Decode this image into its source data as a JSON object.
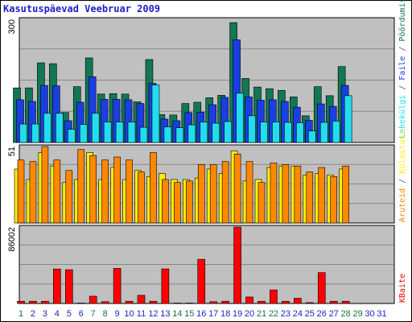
{
  "title": "Kasutuspäevad Veebruar 2009",
  "colors": {
    "title": "#1e1ec8",
    "panel_bg": "#c0c0c0",
    "grid": "#888888",
    "weekday": "#1e1ec8",
    "weekend": "#117744",
    "visits": "#117755",
    "pages": "#1a3fe0",
    "files": "#22ddf0",
    "hits": "#ffee00",
    "hosts": "#ff8800",
    "kbytes": "#ff0000",
    "separator": "#555555"
  },
  "chart_data": [
    {
      "type": "bar",
      "panel": "top",
      "scale_label": "300",
      "ylim": [
        0,
        300
      ],
      "legend": [
        "Pöördumisi",
        "Faile",
        "Lehekülgi"
      ],
      "separator": " / ",
      "categories": [
        1,
        2,
        3,
        4,
        5,
        6,
        7,
        8,
        9,
        10,
        11,
        12,
        13,
        14,
        15,
        16,
        17,
        18,
        19,
        20,
        21,
        22,
        23,
        24,
        25,
        26,
        27,
        28
      ],
      "series": [
        {
          "name": "Pöördumisi",
          "color_key": "visits",
          "values": [
            133,
            133,
            194,
            192,
            73,
            136,
            206,
            118,
            119,
            118,
            99,
            202,
            68,
            67,
            95,
            98,
            109,
            115,
            292,
            156,
            135,
            131,
            127,
            111,
            65,
            136,
            114,
            185
          ]
        },
        {
          "name": "Faile",
          "color_key": "pages",
          "values": [
            104,
            100,
            139,
            138,
            53,
            98,
            160,
            105,
            105,
            104,
            95,
            144,
            57,
            53,
            73,
            74,
            92,
            110,
            250,
            111,
            103,
            104,
            100,
            86,
            54,
            94,
            88,
            139
          ]
        },
        {
          "name": "Lehekülgi",
          "color_key": "files",
          "values": [
            45,
            45,
            71,
            71,
            32,
            44,
            71,
            50,
            50,
            50,
            37,
            140,
            38,
            36,
            43,
            50,
            47,
            51,
            120,
            65,
            50,
            50,
            49,
            48,
            28,
            49,
            52,
            114
          ]
        }
      ]
    },
    {
      "type": "bar",
      "panel": "middle",
      "scale_label": "51",
      "ylim": [
        0,
        51
      ],
      "legend": [
        "Külastusi",
        "Aruteid"
      ],
      "categories": [
        1,
        2,
        3,
        4,
        5,
        6,
        7,
        8,
        9,
        10,
        11,
        12,
        13,
        14,
        15,
        16,
        17,
        18,
        19,
        20,
        21,
        22,
        23,
        24,
        25,
        26,
        27,
        28
      ],
      "series": [
        {
          "name": "Külastusi",
          "color_key": "hits",
          "values": [
            36,
            29,
            47,
            38,
            27,
            29,
            47,
            29,
            37,
            29,
            35,
            31,
            33,
            29,
            29,
            30,
            36,
            33,
            48,
            28,
            29,
            37,
            38,
            38,
            32,
            33,
            32,
            36
          ]
        },
        {
          "name": "Aruteid",
          "color_key": "hosts",
          "values": [
            42,
            41,
            51,
            42,
            35,
            49,
            45,
            42,
            44,
            42,
            34,
            47,
            29,
            27,
            28,
            39,
            39,
            41,
            46,
            41,
            27,
            40,
            39,
            38,
            34,
            37,
            31,
            38
          ]
        }
      ]
    },
    {
      "type": "bar",
      "panel": "bottom",
      "scale_label": "86002",
      "ylim": [
        0,
        86002
      ],
      "legend": [
        "KBaite"
      ],
      "categories": [
        1,
        2,
        3,
        4,
        5,
        6,
        7,
        8,
        9,
        10,
        11,
        12,
        13,
        14,
        15,
        16,
        17,
        18,
        19,
        20,
        21,
        22,
        23,
        24,
        25,
        26,
        27,
        28
      ],
      "series": [
        {
          "name": "KBaite",
          "color_key": "kbytes",
          "values": [
            2500,
            2500,
            2500,
            38800,
            38000,
            500,
            8200,
            2000,
            39500,
            2500,
            9200,
            2500,
            38900,
            500,
            500,
            49700,
            2000,
            2500,
            86002,
            7300,
            2500,
            15300,
            2500,
            5900,
            1000,
            34700,
            2500,
            2500
          ]
        }
      ]
    }
  ],
  "x_axis": {
    "labels": [
      "1",
      "2",
      "3",
      "4",
      "5",
      "6",
      "7",
      "8",
      "9",
      "10",
      "11",
      "12",
      "13",
      "14",
      "15",
      "16",
      "17",
      "18",
      "19",
      "20",
      "21",
      "22",
      "23",
      "24",
      "25",
      "26",
      "27",
      "28",
      "29",
      "30",
      "31"
    ],
    "weekend_days": [
      1,
      7,
      8,
      14,
      15,
      21,
      22,
      28,
      29
    ]
  }
}
